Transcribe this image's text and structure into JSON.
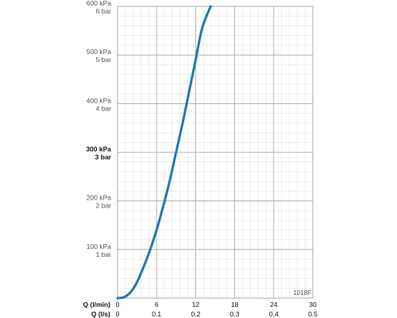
{
  "chart_data": {
    "type": "line",
    "x_axis_primary": {
      "label": "Q (l/min)",
      "ticks": [
        "0",
        "6",
        "12",
        "18",
        "24",
        "30"
      ],
      "range": [
        0,
        30
      ]
    },
    "x_axis_secondary": {
      "label": "Q (l/s)",
      "ticks": [
        "0",
        "0.1",
        "0.2",
        "0.3",
        "0.4",
        "0.5"
      ],
      "range": [
        0,
        0.5
      ]
    },
    "y_axis": {
      "range": [
        0,
        600
      ],
      "unit": "kPa",
      "ticks": [
        {
          "value": 100,
          "kpa": "100 kPa",
          "bar": "1 bar",
          "bold": false
        },
        {
          "value": 200,
          "kpa": "200 kPa",
          "bar": "2 bar",
          "bold": false
        },
        {
          "value": 300,
          "kpa": "300 kPa",
          "bar": "3 bar",
          "bold": true
        },
        {
          "value": 400,
          "kpa": "400 kPa",
          "bar": "4 bar",
          "bold": false
        },
        {
          "value": 500,
          "kpa": "500 kPa",
          "bar": "5 bar",
          "bold": false
        },
        {
          "value": 600,
          "kpa": "600 kPa",
          "bar": "6 bar",
          "bold": false
        }
      ]
    },
    "series": [
      {
        "color": "#1f78b4",
        "x": [
          0,
          1,
          2,
          3,
          4,
          5,
          6,
          7,
          8,
          9,
          10,
          11,
          12,
          13,
          14.3
        ],
        "y": [
          0,
          2,
          12,
          33,
          64,
          99,
          140,
          188,
          240,
          300,
          360,
          425,
          490,
          555,
          600
        ]
      }
    ],
    "grid": true,
    "annotation": "1018F"
  }
}
